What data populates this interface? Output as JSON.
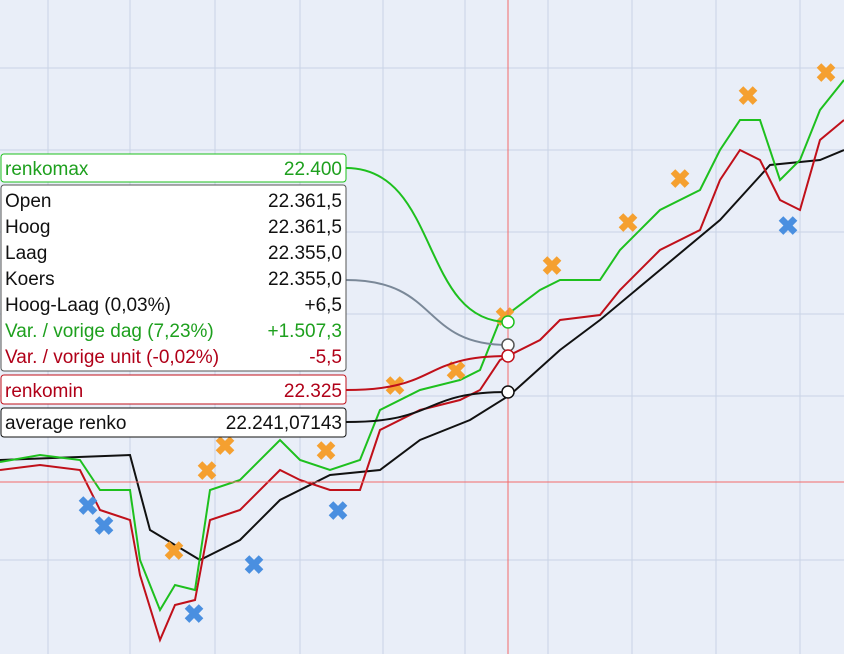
{
  "tooltip": {
    "renkomax": {
      "label": "renkomax",
      "value": "22.400"
    },
    "rows": [
      [
        "Open",
        "22.361,5"
      ],
      [
        "Hoog",
        "22.361,5"
      ],
      [
        "Laag",
        "22.355,0"
      ],
      [
        "Koers",
        "22.355,0"
      ],
      [
        "Hoog-Laag (0,03%)",
        "+6,5"
      ],
      [
        "Var. / vorige dag (7,23%)",
        "+1.507,3"
      ],
      [
        "Var. / vorige unit (-0,02%)",
        "-5,5"
      ]
    ],
    "renkomin": {
      "label": "renkomin",
      "value": "22.325"
    },
    "average": {
      "label": "average renko",
      "value": "22.241,07143"
    }
  }
}
